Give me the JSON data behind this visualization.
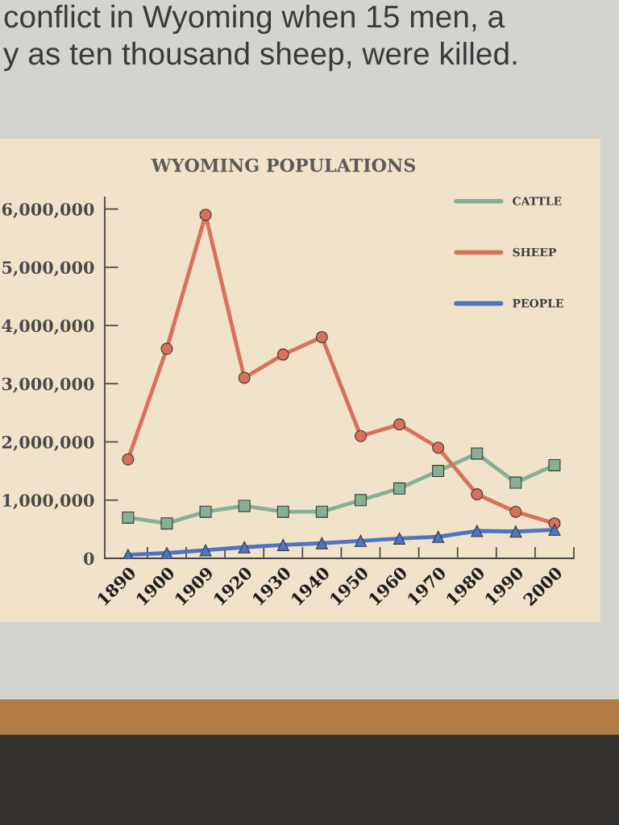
{
  "chart_data": {
    "type": "line",
    "title": "WYOMING POPULATIONS",
    "annotations": [
      "conflict in Wyoming when 15 men, a",
      "y as ten thousand sheep, were killed."
    ],
    "categories": [
      "1890",
      "1900",
      "1909",
      "1920",
      "1930",
      "1940",
      "1950",
      "1960",
      "1970",
      "1980",
      "1990",
      "2000"
    ],
    "series": [
      {
        "name": "CATTLE",
        "color": "#86b096",
        "marker": "square",
        "values": [
          700000,
          600000,
          800000,
          900000,
          800000,
          800000,
          1000000,
          1200000,
          1500000,
          1800000,
          1300000,
          1600000
        ]
      },
      {
        "name": "SHEEP",
        "color": "#d8705c",
        "marker": "circle",
        "values": [
          1700000,
          3600000,
          5900000,
          3100000,
          3500000,
          3800000,
          2100000,
          2300000,
          1900000,
          1100000,
          800000,
          600000
        ]
      },
      {
        "name": "PEOPLE",
        "color": "#4f74c4",
        "marker": "triangle",
        "values": [
          60000,
          90000,
          140000,
          190000,
          230000,
          260000,
          300000,
          340000,
          370000,
          470000,
          460000,
          490000
        ]
      }
    ],
    "ylim": [
      0,
      6200000
    ],
    "yticks": [
      0,
      {
        "value": 1000000,
        "label": "1,000,000"
      },
      {
        "value": 2000000,
        "label": "2,000,000"
      },
      {
        "value": 3000000,
        "label": "3,000,000"
      },
      {
        "value": 4000000,
        "label": "4,000,000"
      },
      {
        "value": 5000000,
        "label": "5,000,000"
      },
      {
        "value": 6000000,
        "label": "6,000,000"
      }
    ],
    "legend": "top right",
    "line_style": "solid"
  }
}
